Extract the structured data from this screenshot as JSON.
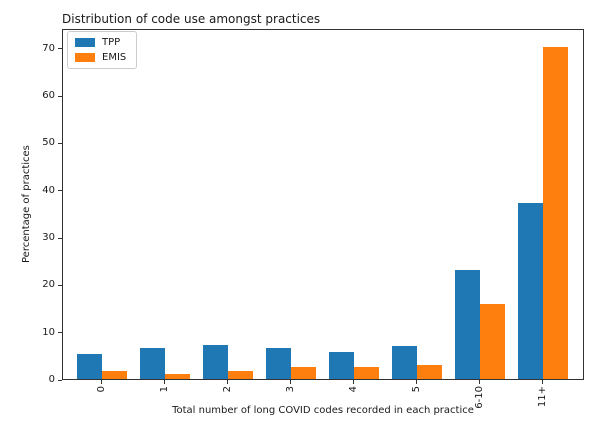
{
  "chart_data": {
    "type": "bar",
    "title": "Distribution of code use amongst practices",
    "xlabel": "Total number of long COVID codes recorded in each practice",
    "ylabel": "Percentage of practices",
    "categories": [
      "0",
      "1",
      "2",
      "3",
      "4",
      "5",
      "6-10",
      "11+"
    ],
    "series": [
      {
        "name": "TPP",
        "color": "#1f77b4",
        "values": [
          5.4,
          6.8,
          7.5,
          6.8,
          6.0,
          7.1,
          23.3,
          37.5
        ]
      },
      {
        "name": "EMIS",
        "color": "#ff7f0e",
        "values": [
          2.0,
          1.3,
          2.0,
          2.8,
          2.8,
          3.1,
          16.0,
          70.5
        ]
      }
    ],
    "yticks": [
      0,
      10,
      20,
      30,
      40,
      50,
      60,
      70
    ],
    "ylim": [
      0,
      74.2
    ],
    "xtick_rotation": 90,
    "legend_position": "upper left",
    "grid": false,
    "spine_color": "#333333",
    "background": "#ffffff"
  }
}
